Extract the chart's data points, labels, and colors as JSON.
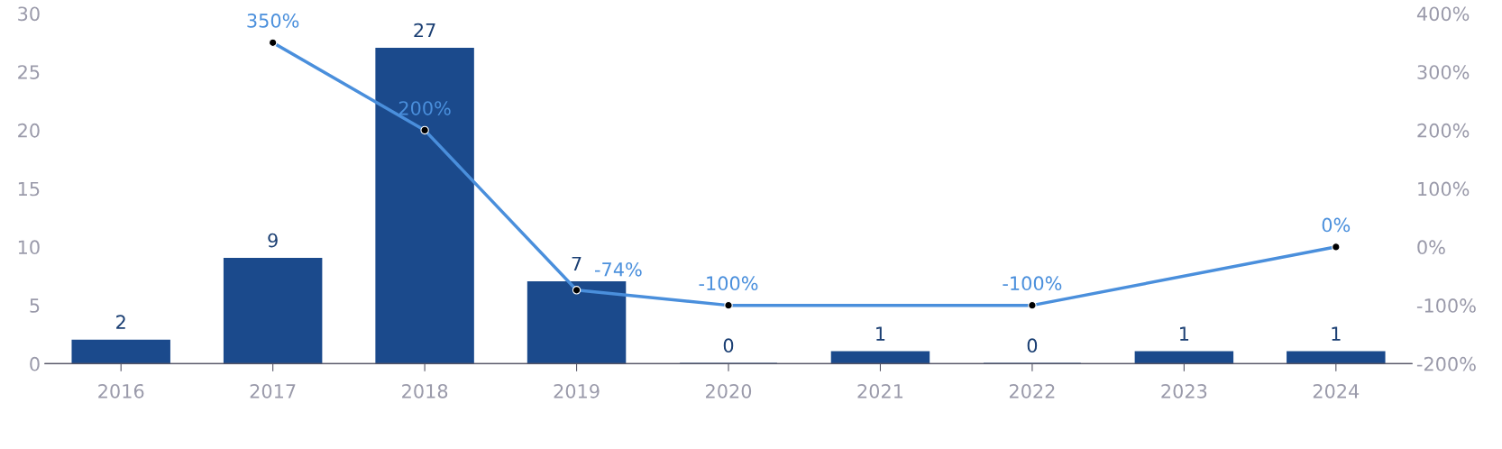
{
  "chart_data": {
    "type": "bar",
    "categories": [
      "2016",
      "2017",
      "2018",
      "2019",
      "2020",
      "2021",
      "2022",
      "2023",
      "2024"
    ],
    "series": [
      {
        "color": "#1b4a8c",
        "values": [
          2,
          9,
          27,
          7,
          0,
          1,
          0,
          1,
          1
        ],
        "value_labels": [
          "2",
          "9",
          "27",
          "7",
          "0",
          "1",
          "0",
          "1",
          "1"
        ]
      },
      {
        "type": "line",
        "axis": "y2",
        "color": "#4a8fdc",
        "marker": "circle",
        "values": [
          null,
          350,
          200,
          -74,
          -100,
          null,
          -100,
          null,
          0
        ],
        "value_labels": [
          null,
          "350%",
          "200%",
          "-74%",
          "-100%",
          null,
          "-100%",
          null,
          "0%"
        ]
      }
    ],
    "ylim": [
      0,
      30
    ],
    "yticks": [
      0,
      5,
      10,
      15,
      20,
      25,
      30
    ],
    "y2lim": [
      -200,
      400
    ],
    "y2ticks": [
      {
        "value": -200,
        "label": "-200%"
      },
      {
        "value": -100,
        "label": "-100%"
      },
      {
        "value": 0,
        "label": "0%"
      },
      {
        "value": 100,
        "label": "100%"
      },
      {
        "value": 200,
        "label": "200%"
      },
      {
        "value": 300,
        "label": "300%"
      },
      {
        "value": 400,
        "label": "400%"
      }
    ],
    "grid": false,
    "legend": false
  }
}
